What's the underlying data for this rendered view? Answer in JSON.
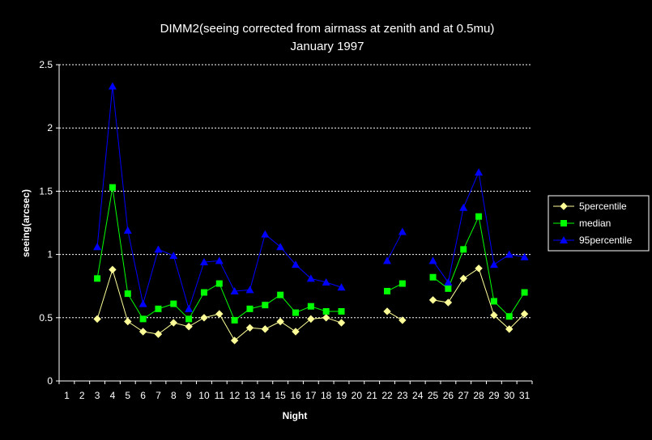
{
  "chart_data": {
    "type": "line",
    "title": "DIMM2(seeing corrected from airmass at zenith and at 0.5mu)",
    "subtitle": "January 1997",
    "xlabel": "Night",
    "ylabel": "seeing(arcsec)",
    "x": [
      1,
      2,
      3,
      4,
      5,
      6,
      7,
      8,
      9,
      10,
      11,
      12,
      13,
      14,
      15,
      16,
      17,
      18,
      19,
      20,
      21,
      22,
      23,
      24,
      25,
      26,
      27,
      28,
      29,
      30,
      31
    ],
    "ylim": [
      0,
      2.5
    ],
    "yticks": [
      "0",
      "0.5",
      "1",
      "1.5",
      "2",
      "2.5"
    ],
    "grid": "horizontal dashed",
    "legend_position": "right",
    "series": [
      {
        "name": "5percentile",
        "color": "#ffff99",
        "marker": "diamond",
        "values": [
          null,
          null,
          0.49,
          0.88,
          0.47,
          0.39,
          0.37,
          0.46,
          0.43,
          0.5,
          0.53,
          0.32,
          0.42,
          0.41,
          0.47,
          0.39,
          0.49,
          0.5,
          0.46,
          null,
          null,
          0.55,
          0.48,
          null,
          0.64,
          0.62,
          0.81,
          0.89,
          0.52,
          0.41,
          0.53
        ]
      },
      {
        "name": "median",
        "color": "#00ff00",
        "marker": "square",
        "values": [
          null,
          null,
          0.81,
          1.53,
          0.69,
          0.49,
          0.57,
          0.61,
          0.49,
          0.7,
          0.77,
          0.48,
          0.57,
          0.6,
          0.68,
          0.54,
          0.59,
          0.55,
          0.55,
          null,
          null,
          0.71,
          0.77,
          null,
          0.82,
          0.73,
          1.04,
          1.3,
          0.63,
          0.51,
          0.7
        ]
      },
      {
        "name": "95percentile",
        "color": "#0000ff",
        "marker": "triangle",
        "values": [
          null,
          null,
          1.06,
          2.33,
          1.19,
          0.61,
          1.04,
          0.99,
          0.57,
          0.94,
          0.95,
          0.71,
          0.72,
          1.16,
          1.06,
          0.92,
          0.81,
          0.78,
          0.74,
          null,
          null,
          0.95,
          1.18,
          null,
          0.95,
          0.78,
          1.37,
          1.65,
          0.92,
          1.0,
          0.98
        ]
      }
    ]
  }
}
